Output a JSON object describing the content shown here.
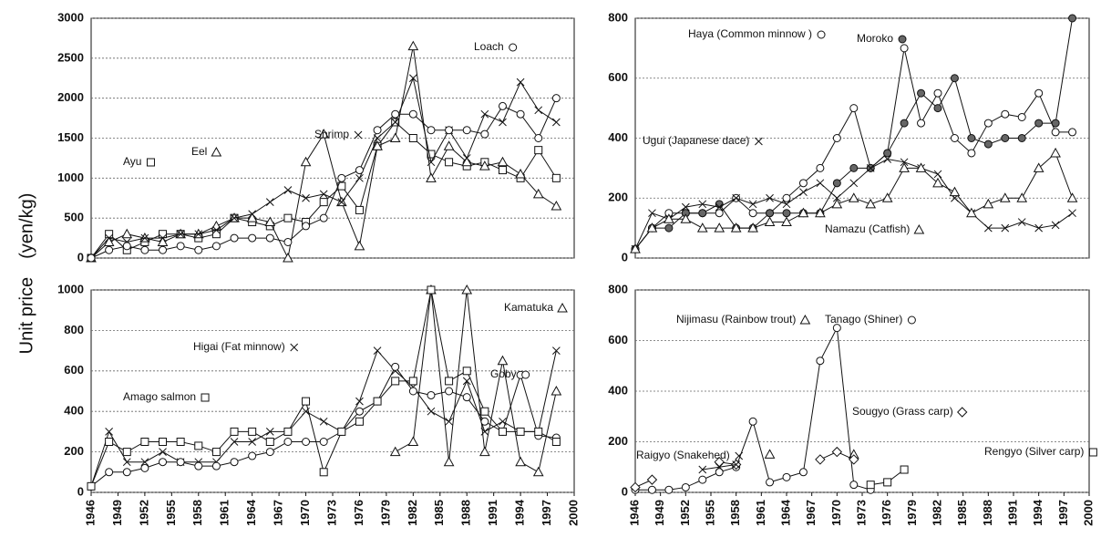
{
  "y_axis_label": "Unit price　(yen/kg)",
  "chart_data": [
    {
      "type": "line",
      "xlim": [
        1946,
        2000
      ],
      "ylim": [
        0,
        3000
      ],
      "yticks": [
        0,
        500,
        1000,
        1500,
        2000,
        2500,
        3000
      ],
      "grid": true,
      "x": [
        1946,
        1948,
        1950,
        1952,
        1954,
        1956,
        1958,
        1960,
        1962,
        1964,
        1966,
        1968,
        1970,
        1972,
        1974,
        1976,
        1978,
        1980,
        1982,
        1984,
        1986,
        1988,
        1990,
        1992,
        1994,
        1996,
        1998
      ],
      "series": [
        {
          "name": "Ayu",
          "marker": "square",
          "color": "#111",
          "values": [
            0,
            300,
            100,
            200,
            300,
            300,
            250,
            300,
            500,
            450,
            400,
            500,
            450,
            700,
            900,
            600,
            1400,
            1700,
            1500,
            1300,
            1200,
            1150,
            1200,
            1100,
            1000,
            1350,
            1000
          ]
        },
        {
          "name": "Eel",
          "marker": "triangle",
          "color": "#111",
          "values": [
            0,
            200,
            300,
            250,
            200,
            300,
            300,
            400,
            500,
            500,
            450,
            0,
            1200,
            1550,
            700,
            150,
            1400,
            1500,
            2650,
            1000,
            1400,
            1200,
            1150,
            1200,
            1050,
            800,
            650
          ]
        },
        {
          "name": "Shrimp",
          "marker": "x",
          "color": "#111",
          "values": [
            0,
            250,
            200,
            250,
            250,
            300,
            300,
            350,
            500,
            550,
            700,
            850,
            750,
            800,
            700,
            1000,
            1500,
            1700,
            2250,
            1200,
            1600,
            1250,
            1800,
            1700,
            2200,
            1850,
            1700
          ]
        },
        {
          "name": "Loach",
          "marker": "circle",
          "color": "#111",
          "values": [
            0,
            100,
            150,
            100,
            100,
            150,
            100,
            150,
            250,
            250,
            250,
            200,
            400,
            500,
            1000,
            1100,
            1600,
            1800,
            1800,
            1600,
            1600,
            1600,
            1550,
            1900,
            1800,
            1500,
            2000
          ]
        }
      ]
    },
    {
      "type": "line",
      "xlim": [
        1946,
        2000
      ],
      "ylim": [
        0,
        800
      ],
      "yticks": [
        0,
        200,
        400,
        600,
        800
      ],
      "grid": true,
      "x": [
        1946,
        1948,
        1950,
        1952,
        1954,
        1956,
        1958,
        1960,
        1962,
        1964,
        1966,
        1968,
        1970,
        1972,
        1974,
        1976,
        1978,
        1980,
        1982,
        1984,
        1986,
        1988,
        1990,
        1992,
        1994,
        1996,
        1998
      ],
      "series": [
        {
          "name": "Haya (Common minnow )",
          "marker": "circle",
          "color": "#111",
          "values": [
            30,
            100,
            150,
            150,
            150,
            150,
            200,
            150,
            150,
            200,
            250,
            300,
            400,
            500,
            300,
            350,
            700,
            450,
            550,
            400,
            350,
            450,
            480,
            470,
            550,
            420,
            420
          ]
        },
        {
          "name": "Moroko",
          "marker": "filled",
          "color": "#111",
          "values": [
            30,
            100,
            100,
            150,
            150,
            180,
            100,
            100,
            150,
            150,
            150,
            150,
            250,
            300,
            300,
            350,
            450,
            550,
            500,
            600,
            400,
            380,
            400,
            400,
            450,
            450,
            800
          ]
        },
        {
          "name": "Ugui (Japanese dace)",
          "marker": "x",
          "color": "#111",
          "values": [
            30,
            150,
            130,
            170,
            180,
            170,
            200,
            180,
            200,
            180,
            220,
            250,
            200,
            250,
            300,
            330,
            320,
            300,
            280,
            200,
            150,
            100,
            100,
            120,
            100,
            110,
            150
          ]
        },
        {
          "name": "Namazu (Catfish)",
          "marker": "triangle",
          "color": "#111",
          "values": [
            30,
            100,
            130,
            130,
            100,
            100,
            100,
            100,
            120,
            120,
            150,
            150,
            180,
            200,
            180,
            200,
            300,
            300,
            250,
            220,
            150,
            180,
            200,
            200,
            300,
            350,
            200
          ]
        }
      ]
    },
    {
      "type": "line",
      "xlim": [
        1946,
        2000
      ],
      "ylim": [
        0,
        1000
      ],
      "yticks": [
        0,
        200,
        400,
        600,
        800,
        1000
      ],
      "grid": true,
      "xticks": [
        1946,
        1949,
        1952,
        1955,
        1958,
        1961,
        1964,
        1967,
        1970,
        1973,
        1976,
        1979,
        1982,
        1985,
        1988,
        1991,
        1994,
        1997,
        2000
      ],
      "x": [
        1946,
        1948,
        1950,
        1952,
        1954,
        1956,
        1958,
        1960,
        1962,
        1964,
        1966,
        1968,
        1970,
        1972,
        1974,
        1976,
        1978,
        1980,
        1982,
        1984,
        1986,
        1988,
        1990,
        1992,
        1994,
        1996,
        1998
      ],
      "series": [
        {
          "name": "Kamatuka",
          "marker": "triangle",
          "color": "#111",
          "values": [
            null,
            null,
            null,
            null,
            null,
            null,
            null,
            null,
            null,
            null,
            null,
            null,
            null,
            null,
            null,
            null,
            null,
            200,
            250,
            1000,
            150,
            1000,
            200,
            650,
            150,
            100,
            500
          ]
        },
        {
          "name": "Higai (Fat minnow)",
          "marker": "x",
          "color": "#111",
          "values": [
            30,
            300,
            150,
            150,
            200,
            150,
            150,
            150,
            250,
            250,
            300,
            300,
            400,
            350,
            300,
            450,
            700,
            600,
            520,
            400,
            350,
            550,
            300,
            350,
            300,
            300,
            700
          ]
        },
        {
          "name": "Goby",
          "marker": "circle",
          "color": "#111",
          "values": [
            30,
            100,
            100,
            120,
            150,
            150,
            130,
            130,
            150,
            180,
            200,
            250,
            250,
            250,
            300,
            400,
            450,
            620,
            500,
            480,
            500,
            470,
            350,
            300,
            580,
            280,
            270
          ]
        },
        {
          "name": "Amago salmon",
          "marker": "square",
          "color": "#111",
          "values": [
            30,
            250,
            200,
            250,
            250,
            250,
            230,
            200,
            300,
            300,
            250,
            300,
            450,
            100,
            300,
            350,
            450,
            550,
            550,
            1000,
            550,
            600,
            400,
            300,
            300,
            300,
            250
          ]
        }
      ]
    },
    {
      "type": "line",
      "xlim": [
        1946,
        2000
      ],
      "ylim": [
        0,
        800
      ],
      "yticks": [
        0,
        200,
        400,
        600,
        800
      ],
      "grid": true,
      "xticks": [
        1946,
        1949,
        1952,
        1955,
        1958,
        1961,
        1964,
        1967,
        1970,
        1973,
        1976,
        1979,
        1982,
        1985,
        1988,
        1991,
        1994,
        1997,
        2000
      ],
      "x": [
        1946,
        1948,
        1950,
        1952,
        1954,
        1956,
        1958,
        1960,
        1962,
        1964,
        1966,
        1968,
        1970,
        1972,
        1974,
        1976,
        1978,
        1980,
        1982,
        1984,
        1986,
        1988,
        1990,
        1992,
        1994,
        1996,
        1998
      ],
      "series": [
        {
          "name": "Nijimasu (Rainbow trout)",
          "marker": "triangle",
          "color": "#111",
          "values": [
            null,
            null,
            null,
            null,
            null,
            null,
            null,
            null,
            150,
            null,
            null,
            null,
            null,
            150,
            null,
            null,
            null,
            null,
            null,
            null,
            null,
            null,
            null,
            null,
            null,
            null,
            null
          ]
        },
        {
          "name": "Tanago (Shiner)",
          "marker": "circle",
          "color": "#111",
          "values": [
            10,
            10,
            10,
            20,
            50,
            80,
            100,
            280,
            40,
            60,
            80,
            520,
            650,
            30,
            10,
            null,
            null,
            null,
            null,
            null,
            null,
            null,
            null,
            null,
            null,
            null,
            null
          ]
        },
        {
          "name": "Sougyo (Grass carp)",
          "marker": "diamond",
          "color": "#111",
          "values": [
            20,
            50,
            null,
            null,
            null,
            120,
            110,
            null,
            null,
            null,
            null,
            130,
            160,
            130,
            null,
            null,
            null,
            null,
            null,
            null,
            null,
            null,
            null,
            null,
            null,
            null,
            null
          ]
        },
        {
          "name": "Raigyo (Snakehed)",
          "marker": "x",
          "color": "#111",
          "values": [
            null,
            null,
            null,
            null,
            90,
            100,
            110,
            null,
            null,
            null,
            null,
            null,
            null,
            null,
            null,
            null,
            null,
            null,
            null,
            null,
            null,
            null,
            null,
            null,
            null,
            null,
            null
          ]
        },
        {
          "name": "Rengyo (Silver carp)",
          "marker": "square",
          "color": "#111",
          "values": [
            null,
            null,
            null,
            null,
            null,
            null,
            null,
            null,
            null,
            null,
            null,
            null,
            null,
            null,
            30,
            40,
            90,
            null,
            null,
            null,
            null,
            null,
            null,
            null,
            null,
            null,
            null
          ]
        }
      ]
    }
  ]
}
